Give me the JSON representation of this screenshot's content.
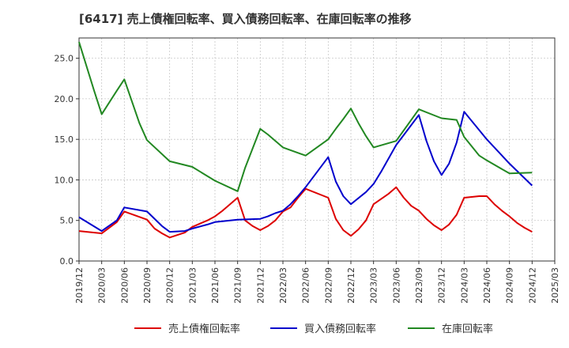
{
  "chart_data": {
    "type": "line",
    "title": "[6417]  売上債権回転率、買入債務回転率、在庫回転率の推移",
    "xlabel": "",
    "ylabel": "",
    "ylim": [
      0,
      27.5
    ],
    "yticks": [
      0.0,
      5.0,
      10.0,
      15.0,
      20.0,
      25.0
    ],
    "ytick_labels": [
      "0.0",
      "5.0",
      "10.0",
      "15.0",
      "20.0",
      "25.0"
    ],
    "grid": true,
    "legend_position": "bottom",
    "x_start": "2019-12",
    "x_step_months": 1,
    "xtick_labels": [
      "2019/12",
      "2020/03",
      "2020/06",
      "2020/09",
      "2020/12",
      "2021/03",
      "2021/06",
      "2021/09",
      "2021/12",
      "2022/03",
      "2022/06",
      "2022/09",
      "2022/12",
      "2023/03",
      "2023/06",
      "2023/09",
      "2023/12",
      "2024/03",
      "2024/06",
      "2024/09",
      "2024/12",
      "2025/03"
    ],
    "xtick_index": [
      0,
      3,
      6,
      9,
      12,
      15,
      18,
      21,
      24,
      27,
      30,
      33,
      36,
      39,
      42,
      45,
      48,
      51,
      54,
      57,
      60,
      63
    ],
    "x_max_index": 63,
    "series": [
      {
        "name": "売上債権回転率",
        "color": "#dd0000",
        "x": [
          0,
          3,
          5,
          6,
          9,
          10,
          11,
          12,
          14,
          15,
          17,
          18,
          19,
          20,
          21,
          22,
          23,
          24,
          25,
          26,
          27,
          28,
          29,
          30,
          33,
          34,
          35,
          36,
          37,
          38,
          39,
          41,
          42,
          43,
          44,
          45,
          46,
          47,
          48,
          49,
          50,
          51,
          53,
          54,
          55,
          56,
          57,
          58,
          59,
          60
        ],
        "values": [
          3.7,
          3.4,
          4.8,
          6.1,
          5.1,
          4.0,
          3.4,
          2.9,
          3.5,
          4.2,
          5.0,
          5.5,
          6.2,
          7.0,
          7.8,
          5.0,
          4.3,
          3.8,
          4.3,
          5.0,
          6.1,
          6.6,
          7.8,
          8.9,
          7.8,
          5.2,
          3.8,
          3.1,
          3.9,
          5.0,
          7.0,
          8.3,
          9.1,
          7.8,
          6.8,
          6.2,
          5.2,
          4.4,
          3.8,
          4.5,
          5.7,
          7.8,
          8.0,
          8.0,
          7.0,
          6.2,
          5.5,
          4.7,
          4.1,
          3.6
        ]
      },
      {
        "name": "買入債務回転率",
        "color": "#0000cc",
        "x": [
          0,
          3,
          5,
          6,
          9,
          11,
          12,
          14,
          15,
          17,
          18,
          21,
          24,
          25,
          26,
          27,
          28,
          29,
          30,
          33,
          34,
          35,
          36,
          38,
          39,
          40,
          42,
          45,
          46,
          47,
          48,
          49,
          50,
          51,
          54,
          57,
          59,
          60
        ],
        "values": [
          5.4,
          3.7,
          5.0,
          6.6,
          6.1,
          4.3,
          3.6,
          3.7,
          4.0,
          4.5,
          4.8,
          5.1,
          5.2,
          5.5,
          5.9,
          6.2,
          7.0,
          8.0,
          9.1,
          12.8,
          9.8,
          8.0,
          7.0,
          8.5,
          9.5,
          11.0,
          14.3,
          18.0,
          14.8,
          12.3,
          10.6,
          12.0,
          14.6,
          18.4,
          15.0,
          12.0,
          10.2,
          9.3
        ]
      },
      {
        "name": "在庫回転率",
        "color": "#228822",
        "x": [
          0,
          2,
          3,
          5,
          6,
          8,
          9,
          12,
          15,
          18,
          21,
          22,
          24,
          25,
          27,
          30,
          33,
          34,
          35,
          36,
          37,
          38,
          39,
          42,
          45,
          48,
          50,
          51,
          53,
          54,
          57,
          60
        ],
        "values": [
          27.0,
          21.0,
          18.1,
          21.0,
          22.4,
          17.0,
          14.9,
          12.3,
          11.6,
          9.9,
          8.6,
          11.5,
          16.3,
          15.6,
          14.0,
          13.0,
          15.0,
          16.3,
          17.5,
          18.8,
          17.0,
          15.4,
          14.0,
          14.8,
          18.7,
          17.6,
          17.4,
          15.3,
          13.0,
          12.4,
          10.8,
          10.9
        ]
      }
    ]
  }
}
